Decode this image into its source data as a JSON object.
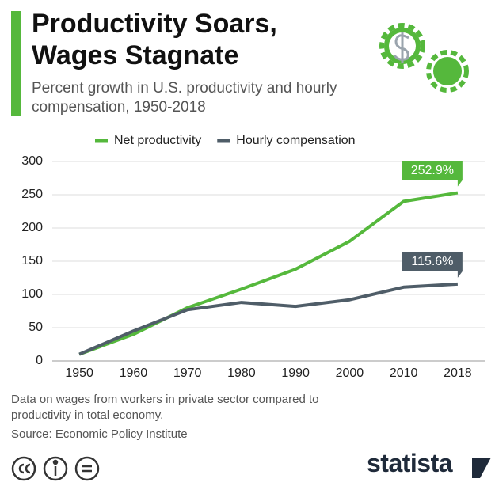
{
  "chart_data": {
    "type": "line",
    "title": "Productivity Soars, Wages Stagnate",
    "subtitle": "Percent growth in U.S. productivity and hourly compensation, 1950-2018",
    "categories": [
      "1950",
      "1960",
      "1970",
      "1980",
      "1990",
      "2000",
      "2010",
      "2018"
    ],
    "series": [
      {
        "name": "Net productivity",
        "color": "#55b83c",
        "values": [
          10,
          40,
          80,
          108,
          138,
          180,
          240,
          252.9
        ],
        "value_labels": [
          null,
          null,
          null,
          null,
          null,
          null,
          null,
          "252.9%"
        ]
      },
      {
        "name": "Hourly compensation",
        "color": "#4f5d68",
        "values": [
          10,
          45,
          77,
          88,
          82,
          92,
          111,
          115.6
        ],
        "value_labels": [
          null,
          null,
          null,
          null,
          null,
          null,
          null,
          "115.6%"
        ]
      }
    ],
    "ylim": [
      0,
      300
    ],
    "yticks": [
      0,
      50,
      100,
      150,
      200,
      250,
      300
    ],
    "grid": true,
    "note": "Data on wages from workers in private sector compared to productivity in total economy.",
    "source": "Source: Economic Policy Institute",
    "brand": "statista"
  }
}
